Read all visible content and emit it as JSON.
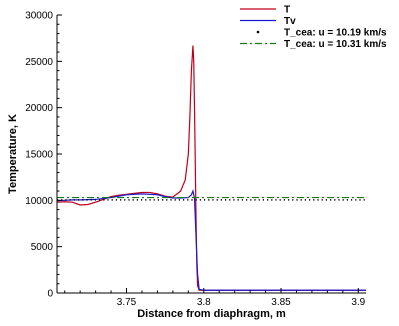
{
  "chart_data": {
    "type": "line",
    "title": "",
    "xlabel": "Distance from diaphragm, m",
    "ylabel": "Temperature, K",
    "xlim": [
      3.705,
      3.905
    ],
    "ylim": [
      0,
      30000
    ],
    "xticks": [
      3.75,
      3.8,
      3.85,
      3.9
    ],
    "xtick_labels": [
      "3.75",
      "3.8",
      "3.85",
      "3.9"
    ],
    "yticks": [
      0,
      5000,
      10000,
      15000,
      20000,
      25000,
      30000
    ],
    "ytick_labels": [
      "0",
      "5000",
      "10000",
      "15000",
      "20000",
      "25000",
      "30000"
    ],
    "grid": false,
    "legend_position": "top-right",
    "series": [
      {
        "name": "T",
        "style": "solid",
        "color": "#c0001a",
        "x": [
          3.705,
          3.71,
          3.715,
          3.72,
          3.725,
          3.73,
          3.735,
          3.74,
          3.745,
          3.75,
          3.755,
          3.76,
          3.765,
          3.77,
          3.775,
          3.78,
          3.785,
          3.788,
          3.79,
          3.791,
          3.792,
          3.793,
          3.7935,
          3.794,
          3.7945,
          3.795,
          3.7955,
          3.796,
          3.797,
          3.8,
          3.85,
          3.905
        ],
        "y": [
          9800,
          9850,
          9800,
          9500,
          9550,
          9800,
          10100,
          10400,
          10550,
          10650,
          10750,
          10850,
          10850,
          10700,
          10450,
          10350,
          11000,
          12200,
          15000,
          19000,
          24000,
          26700,
          25000,
          20000,
          14000,
          8000,
          3000,
          800,
          300,
          300,
          300,
          300
        ]
      },
      {
        "name": "Tv",
        "style": "solid",
        "color": "#1a1ad0",
        "x": [
          3.705,
          3.71,
          3.715,
          3.72,
          3.73,
          3.74,
          3.75,
          3.76,
          3.77,
          3.775,
          3.78,
          3.785,
          3.79,
          3.792,
          3.793,
          3.794,
          3.795,
          3.796,
          3.797,
          3.8,
          3.85,
          3.905
        ],
        "y": [
          9950,
          10000,
          10050,
          10050,
          10100,
          10300,
          10600,
          10700,
          10600,
          10400,
          10250,
          10250,
          10300,
          10600,
          11000,
          10200,
          6000,
          2000,
          400,
          300,
          300,
          300
        ]
      },
      {
        "name": "T_cea: u = 10.19 km/s",
        "style": "dotted",
        "color": "#000000",
        "x": [
          3.705,
          3.905
        ],
        "y": [
          10050,
          10050
        ]
      },
      {
        "name": "T_cea: u = 10.31 km/s",
        "style": "dashdot",
        "color": "#1a7a1a",
        "x": [
          3.705,
          3.905
        ],
        "y": [
          10300,
          10300
        ]
      }
    ]
  }
}
